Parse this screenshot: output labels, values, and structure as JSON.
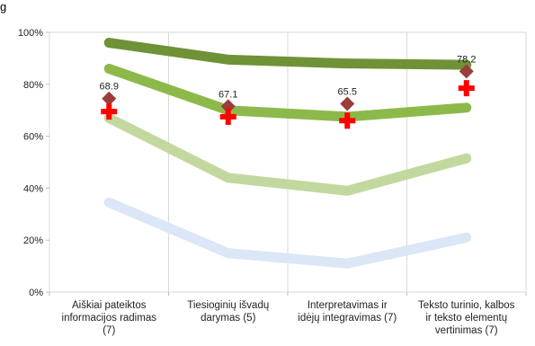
{
  "fragment_text": "g",
  "chart_data": {
    "type": "line",
    "categories": [
      [
        "Aiškiai pateiktos",
        "informacijos radimas",
        "(7)"
      ],
      [
        "Tiesioginių išvadų",
        "darymas (5)"
      ],
      [
        "Interpretavimas ir",
        "idėjų integravimas (7)"
      ],
      [
        "Teksto turinio, kalbos",
        "ir  teksto elementų",
        "vertinimas (7)"
      ]
    ],
    "y_tick_labels": [
      "0%",
      "20%",
      "40%",
      "60%",
      "80%",
      "100%"
    ],
    "ylim": [
      0,
      100
    ],
    "grid": "vertical",
    "legend": "none",
    "series": [
      {
        "kind": "band",
        "color": "#dbe6f6",
        "values": [
          34.5,
          15,
          11,
          21
        ]
      },
      {
        "kind": "band",
        "color": "#c3d89e",
        "values": [
          67,
          44,
          39,
          51.5
        ]
      },
      {
        "kind": "band",
        "color": "#8db94a",
        "values": [
          86,
          70,
          67.5,
          71
        ]
      },
      {
        "kind": "band",
        "color": "#6f9237",
        "values": [
          96,
          89.5,
          88,
          87.5
        ]
      },
      {
        "kind": "markers",
        "marker": "diamond",
        "color": "#9b3d3d",
        "values": [
          74.5,
          71.5,
          72.5,
          85
        ]
      },
      {
        "kind": "markers",
        "marker": "cross",
        "color": "#ff0000",
        "values": [
          69.5,
          67.5,
          66,
          78.5
        ]
      }
    ],
    "data_labels": [
      "68.9",
      "67.1",
      "65.5",
      "78.2"
    ]
  }
}
